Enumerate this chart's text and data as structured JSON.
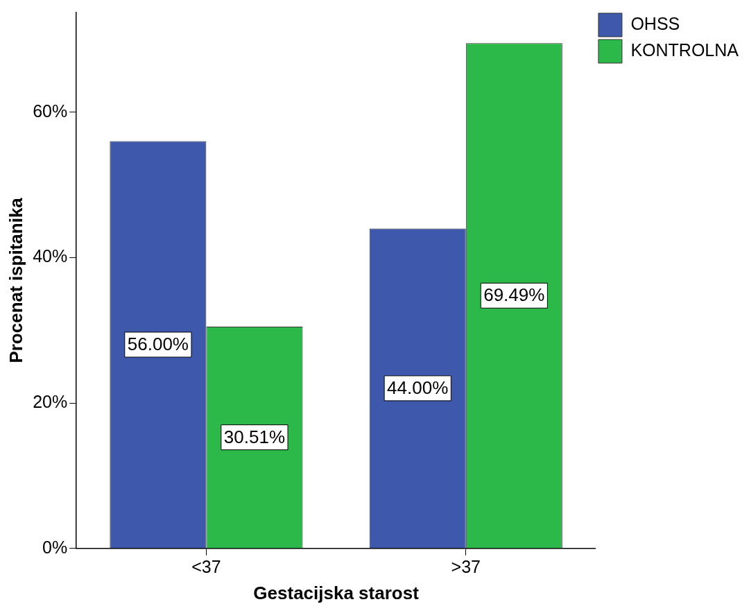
{
  "chart_data": {
    "type": "bar",
    "xlabel": "Gestacijska starost",
    "ylabel": "Procenat ispitanika",
    "categories": [
      "<37",
      ">37"
    ],
    "series": [
      {
        "name": "OHSS",
        "color": "#3e58ac",
        "values": [
          56.0,
          44.0
        ],
        "value_labels": [
          "56.00%",
          "44.00%"
        ]
      },
      {
        "name": "KONTROLNA",
        "color": "#2db84a",
        "values": [
          30.51,
          69.49
        ],
        "value_labels": [
          "30.51%",
          "69.49%"
        ]
      }
    ],
    "ylim": [
      0,
      73.7
    ],
    "yticks": [
      {
        "value": 0,
        "label": "0%"
      },
      {
        "value": 20,
        "label": "20%"
      },
      {
        "value": 40,
        "label": "40%"
      },
      {
        "value": 60,
        "label": "60%"
      }
    ],
    "grid": false,
    "legend": "top right"
  }
}
